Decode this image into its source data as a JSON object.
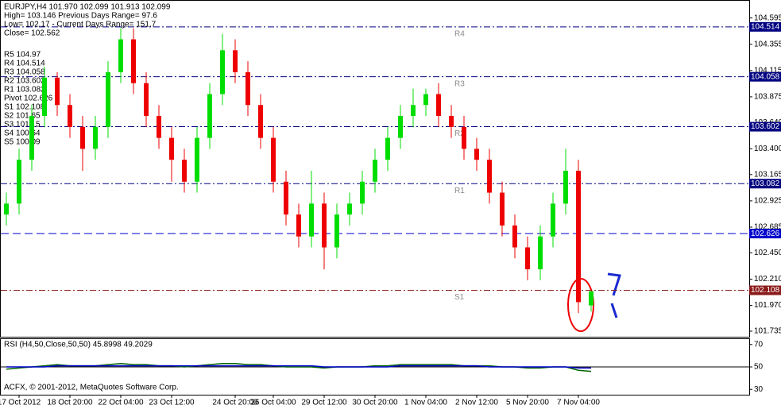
{
  "chart_data": {
    "type": "candlestick",
    "title": "EURJPY,H4  101.970 102.099 101.913 102.099",
    "info": [
      "High= 103.146   Previous Days Range= 97.6",
      "Low= 102.17 - Current Days Range= 151.7",
      "Close= 102.562"
    ],
    "pivot_list": [
      "R5 104.97",
      "R4 104.514",
      "R3 104.058",
      "R2 103.602",
      "R1 103.082",
      "Pivot 102.626",
      "S1 102.108",
      "S2 101.65",
      "S3 101.15",
      "S4 100.64",
      "S5 100.09"
    ],
    "categories": [
      null,
      "17 Oct 2012",
      null,
      null,
      null,
      "18 Oct 20:00",
      null,
      null,
      null,
      "22 Oct 04:00",
      null,
      null,
      null,
      "23 Oct 12:00",
      null,
      null,
      null,
      null,
      "24 Oct 20:00",
      null,
      null,
      "26 Oct 04:00",
      null,
      null,
      null,
      "29 Oct 12:00",
      null,
      null,
      null,
      "30 Oct 20:00",
      null,
      null,
      null,
      "1 Nov 04:00",
      null,
      null,
      null,
      "2 Nov 12:00",
      null,
      null,
      null,
      "5 Nov 20:00",
      null,
      null,
      null,
      "7 Nov 04:00",
      null
    ],
    "open": [
      102.8,
      102.9,
      103.3,
      103.7,
      104.05,
      103.8,
      103.6,
      103.4,
      103.6,
      104.1,
      104.4,
      104.0,
      103.7,
      103.5,
      103.3,
      103.1,
      103.5,
      103.9,
      104.3,
      104.1,
      103.8,
      103.5,
      103.1,
      102.8,
      102.6,
      102.9,
      102.5,
      102.8,
      102.9,
      103.1,
      103.3,
      103.5,
      103.7,
      103.8,
      103.9,
      103.7,
      103.6,
      103.4,
      103.3,
      103.0,
      102.7,
      102.5,
      102.3,
      102.6,
      102.9,
      103.2,
      101.97
    ],
    "high": [
      103.0,
      103.4,
      103.8,
      104.15,
      104.1,
      103.9,
      103.7,
      103.7,
      104.2,
      104.5,
      104.5,
      104.1,
      103.8,
      103.6,
      103.4,
      103.6,
      104.0,
      104.45,
      104.4,
      104.2,
      103.9,
      103.6,
      103.2,
      102.9,
      103.2,
      103.0,
      102.9,
      103.0,
      103.2,
      103.4,
      103.6,
      103.8,
      103.95,
      103.95,
      104.0,
      103.8,
      103.7,
      103.5,
      103.4,
      103.1,
      102.8,
      102.6,
      102.7,
      103.0,
      103.4,
      103.3,
      102.099
    ],
    "low": [
      102.7,
      102.8,
      103.2,
      103.6,
      103.7,
      103.5,
      103.2,
      103.3,
      103.5,
      104.0,
      103.9,
      103.6,
      103.4,
      103.1,
      103.0,
      103.0,
      103.4,
      103.8,
      104.0,
      103.7,
      103.4,
      103.0,
      102.7,
      102.5,
      102.5,
      102.3,
      102.4,
      102.7,
      102.8,
      103.0,
      103.2,
      103.4,
      103.6,
      103.7,
      103.6,
      103.5,
      103.3,
      103.2,
      102.9,
      102.6,
      102.4,
      102.2,
      102.2,
      102.5,
      102.8,
      101.9,
      101.913
    ],
    "close": [
      102.9,
      103.3,
      103.7,
      104.05,
      103.8,
      103.6,
      103.4,
      103.6,
      104.1,
      104.4,
      104.0,
      103.7,
      103.5,
      103.3,
      103.1,
      103.5,
      103.9,
      104.3,
      104.1,
      103.8,
      103.5,
      103.1,
      102.8,
      102.6,
      102.9,
      102.5,
      102.8,
      102.9,
      103.1,
      103.3,
      103.5,
      103.7,
      103.8,
      103.9,
      103.7,
      103.6,
      103.4,
      103.3,
      103.0,
      102.7,
      102.5,
      102.3,
      102.6,
      102.9,
      103.2,
      102.0,
      102.099
    ],
    "up_color": "#00dd00",
    "down_color": "#ee0000",
    "ylim": [
      101.684,
      104.752
    ],
    "yticks": [
      104.595,
      104.355,
      104.115,
      103.875,
      {
        "value": 103.64,
        "label": "103.640"
      },
      {
        "value": 103.4,
        "label": "103.400"
      },
      103.165,
      102.925,
      102.685,
      {
        "value": 102.45,
        "label": "102.450"
      },
      {
        "value": 102.21,
        "label": "102.210"
      },
      {
        "value": 101.97,
        "label": "101.970"
      },
      101.735
    ],
    "levels": [
      {
        "name": "R4",
        "value": 104.514,
        "color": "#000080"
      },
      {
        "name": "R3",
        "value": 104.058,
        "color": "#000080"
      },
      {
        "name": "R2",
        "value": 103.602,
        "color": "#000080"
      },
      {
        "name": "R1",
        "value": 103.082,
        "color": "#000080"
      },
      {
        "value": 102.626,
        "color": "#0000cc"
      },
      {
        "name": "S1",
        "value": 102.108,
        "color": "#8b1a1a"
      }
    ],
    "rsi": {
      "title": "RSI (H4,50,Close,50,50) 45.8998 49.2029",
      "ylim": [
        25.2,
        74.8
      ],
      "yticks": [
        70,
        50,
        30
      ],
      "series": [
        {
          "color": "#006400",
          "values": [
            48,
            49,
            50,
            51,
            52,
            51,
            51,
            51,
            52,
            53,
            52,
            52,
            51,
            51,
            50,
            51,
            52,
            53,
            53,
            52,
            52,
            51,
            50,
            50,
            50,
            49,
            50,
            50,
            50,
            51,
            51,
            52,
            52,
            52,
            52,
            52,
            51,
            51,
            51,
            50,
            50,
            49,
            49,
            50,
            50,
            47,
            46
          ]
        },
        {
          "color": "#0000cc",
          "values": [
            50,
            50,
            50,
            50,
            51,
            51,
            51,
            51,
            51,
            51,
            51,
            51,
            51,
            51,
            51,
            51,
            51,
            51,
            51,
            51,
            51,
            51,
            51,
            51,
            51,
            50,
            50,
            50,
            50,
            50,
            50,
            51,
            51,
            51,
            51,
            51,
            51,
            51,
            50,
            50,
            50,
            50,
            50,
            50,
            50,
            49,
            49
          ]
        }
      ]
    },
    "footer": "ACFX, © 2001-2012, MetaQuotes Software Corp."
  }
}
